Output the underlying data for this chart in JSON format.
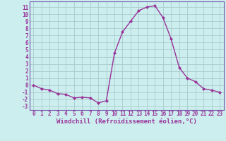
{
  "x": [
    0,
    1,
    2,
    3,
    4,
    5,
    6,
    7,
    8,
    9,
    10,
    11,
    12,
    13,
    14,
    15,
    16,
    17,
    18,
    19,
    20,
    21,
    22,
    23
  ],
  "y": [
    0,
    -0.5,
    -0.7,
    -1.2,
    -1.3,
    -1.8,
    -1.7,
    -1.8,
    -2.5,
    -2.2,
    4.5,
    7.5,
    9.0,
    10.5,
    11.0,
    11.2,
    9.5,
    6.5,
    2.5,
    1.0,
    0.5,
    -0.5,
    -0.7,
    -1.0
  ],
  "line_color": "#993399",
  "marker": "D",
  "markersize": 2.0,
  "linewidth": 1.0,
  "bg_color": "#cceeee",
  "grid_color": "#aacccc",
  "xlabel": "Windchill (Refroidissement éolien,°C)",
  "xlabel_color": "#993399",
  "xlabel_fontsize": 6.5,
  "xticks": [
    0,
    1,
    2,
    3,
    4,
    5,
    6,
    7,
    8,
    9,
    10,
    11,
    12,
    13,
    14,
    15,
    16,
    17,
    18,
    19,
    20,
    21,
    22,
    23
  ],
  "yticks": [
    -3,
    -2,
    -1,
    0,
    1,
    2,
    3,
    4,
    5,
    6,
    7,
    8,
    9,
    10,
    11
  ],
  "ylim": [
    -3.5,
    11.8
  ],
  "xlim": [
    -0.5,
    23.5
  ],
  "tick_fontsize": 5.5,
  "tick_color": "#993399",
  "spine_color": "#7755aa"
}
